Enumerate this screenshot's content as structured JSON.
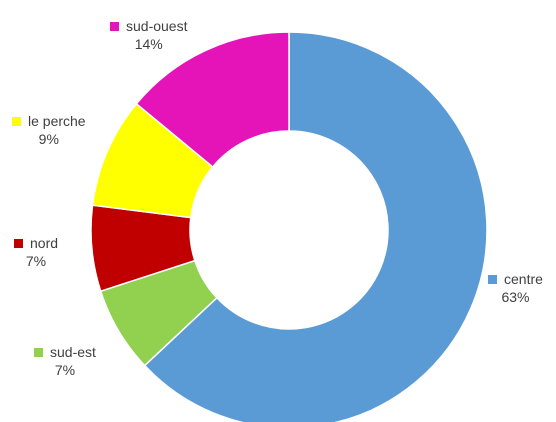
{
  "chart_data": {
    "type": "donut",
    "title": "",
    "series": [
      {
        "values": [
          63,
          7,
          7,
          9,
          14
        ],
        "categories": [
          "centre",
          "sud-est",
          "nord",
          "le perche",
          "sud-ouest"
        ],
        "value_labels": [
          "63%",
          "7%",
          "7%",
          "9%",
          "14%"
        ],
        "colors": [
          "#5b9bd5",
          "#92d050",
          "#c00000",
          "#ffff00",
          "#e414b9"
        ]
      }
    ],
    "start_angle_deg": 0,
    "direction": "clockwise",
    "legend": "none",
    "data_labels": "category name and percent, outside"
  }
}
